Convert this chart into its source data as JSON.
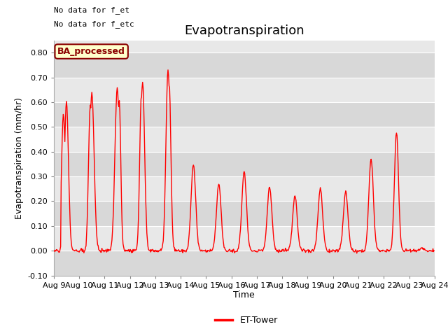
{
  "title": "Evapotranspiration",
  "ylabel": "Evapotranspiration (mm/hr)",
  "xlabel": "Time",
  "ylim": [
    -0.1,
    0.85
  ],
  "yticks": [
    -0.1,
    0.0,
    0.1,
    0.2,
    0.3,
    0.4,
    0.5,
    0.6,
    0.7,
    0.8
  ],
  "line_color": "#ff0000",
  "line_width": 1.0,
  "background_color": "#ffffff",
  "plot_bg_color": "#e8e8e8",
  "grid_color": "#ffffff",
  "annotation_text1": "No data for f_et",
  "annotation_text2": "No data for f_etc",
  "box_label": "BA_processed",
  "legend_label": "ET-Tower",
  "title_fontsize": 13,
  "axis_fontsize": 9,
  "tick_fontsize": 8
}
